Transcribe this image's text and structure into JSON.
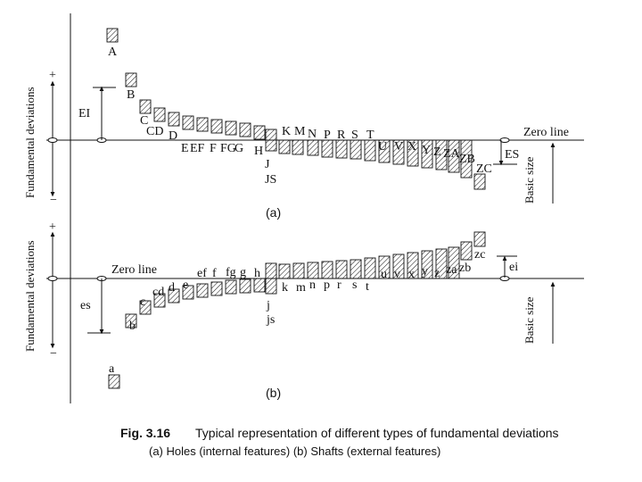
{
  "figure": {
    "number": "Fig. 3.16",
    "title": "Typical representation of different types of fundamental deviations",
    "subtitle": "(a) Holes (internal features) (b) Shafts (external features)"
  },
  "panel_a": {
    "tag": "(a)",
    "axis_label": "Fundamental deviations",
    "plus": "+",
    "minus": "−",
    "zero_line": "Zero line",
    "basic_size": "Basic size",
    "ei_label": "EI",
    "es_label": "ES",
    "labels": [
      "A",
      "B",
      "C",
      "CD",
      "D",
      "E",
      "EF",
      "F",
      "FG",
      "G",
      "H",
      "J",
      "JS",
      "K",
      "M",
      "N",
      "P",
      "R",
      "S",
      "T",
      "U",
      "V",
      "X",
      "Y",
      "Z",
      "ZA",
      "ZB",
      "ZC"
    ]
  },
  "panel_b": {
    "tag": "(b)",
    "axis_label": "Fundamental deviations",
    "plus": "+",
    "minus": "−",
    "zero_line": "Zero line",
    "basic_size": "Basic size",
    "es_label": "es",
    "ei_label": "ei",
    "labels": [
      "a",
      "b",
      "c",
      "cd",
      "d",
      "e",
      "ef",
      "f",
      "fg",
      "g",
      "h",
      "j",
      "js",
      "k",
      "m",
      "n",
      "p",
      "r",
      "s",
      "t",
      "u",
      "v",
      "x",
      "y",
      "z",
      "za",
      "zb",
      "zc"
    ]
  }
}
